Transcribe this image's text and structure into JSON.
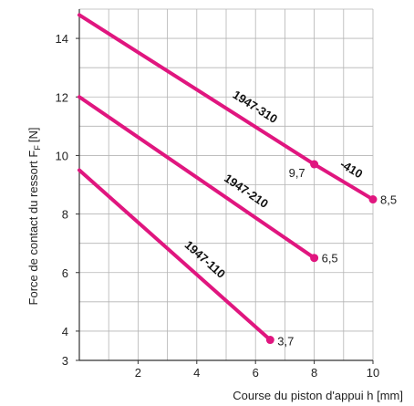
{
  "chart_data": {
    "type": "line",
    "xlabel": "Course du piston d'appui h [mm]",
    "ylabel_main": "Force de contact du ressort F",
    "ylabel_sub": "F",
    "ylabel_unit": "[N]",
    "xlim": [
      0,
      10
    ],
    "ylim": [
      3,
      15
    ],
    "xticks": [
      2,
      4,
      6,
      8,
      10
    ],
    "yticks": [
      3,
      4,
      6,
      8,
      10,
      12,
      14
    ],
    "grid": true,
    "line_color": "#e0167f",
    "series": [
      {
        "name": "1947-310",
        "points": [
          [
            0,
            14.8
          ],
          [
            8,
            9.7
          ]
        ],
        "end_label": "9,7"
      },
      {
        "name": "-410",
        "points": [
          [
            8,
            9.7
          ],
          [
            10,
            8.5
          ]
        ],
        "end_label": "8,5"
      },
      {
        "name": "1947-210",
        "points": [
          [
            0,
            12.0
          ],
          [
            8,
            6.5
          ]
        ],
        "end_label": "6,5"
      },
      {
        "name": "1947-110",
        "points": [
          [
            0,
            9.5
          ],
          [
            6.5,
            3.7
          ]
        ],
        "end_label": "3,7"
      }
    ]
  }
}
